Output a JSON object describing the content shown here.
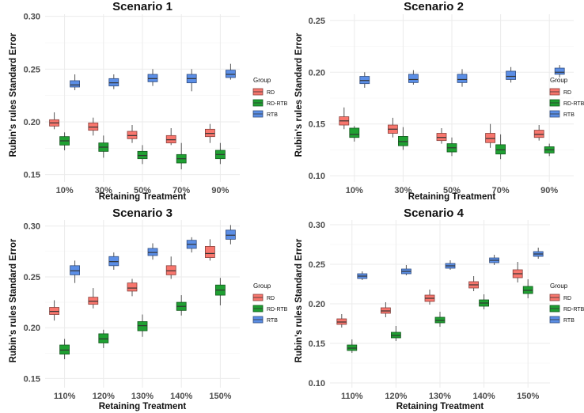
{
  "colors": {
    "RD": "#F8766D",
    "RD-RTB": "#1FA032",
    "RTB": "#5B8EE6"
  },
  "legend": {
    "title": "Group",
    "labels": [
      "RD",
      "RD-RTB",
      "RTB"
    ]
  },
  "chart_data": [
    {
      "type": "boxplot",
      "title": "Scenario 1",
      "xlabel": "Retaining Treatment",
      "ylabel": "Rubin's rules Standard Error",
      "categories": [
        "10%",
        "30%",
        "50%",
        "70%",
        "90%"
      ],
      "ylim": [
        0.143,
        0.302
      ],
      "yticks": [
        0.15,
        0.2,
        0.25,
        0.3
      ],
      "ytick_labels": [
        "0.15",
        "0.20",
        "0.25",
        "0.30"
      ],
      "series": [
        {
          "name": "RD",
          "boxes": [
            {
              "wlo": 0.193,
              "q1": 0.196,
              "med": 0.199,
              "q3": 0.202,
              "whi": 0.209
            },
            {
              "wlo": 0.187,
              "q1": 0.192,
              "med": 0.195,
              "q3": 0.199,
              "whi": 0.204
            },
            {
              "wlo": 0.18,
              "q1": 0.184,
              "med": 0.187,
              "q3": 0.191,
              "whi": 0.197
            },
            {
              "wlo": 0.178,
              "q1": 0.18,
              "med": 0.183,
              "q3": 0.187,
              "whi": 0.194
            },
            {
              "wlo": 0.18,
              "q1": 0.186,
              "med": 0.189,
              "q3": 0.193,
              "whi": 0.198
            }
          ]
        },
        {
          "name": "RD-RTB",
          "boxes": [
            {
              "wlo": 0.173,
              "q1": 0.178,
              "med": 0.182,
              "q3": 0.186,
              "whi": 0.19
            },
            {
              "wlo": 0.166,
              "q1": 0.172,
              "med": 0.176,
              "q3": 0.18,
              "whi": 0.187
            },
            {
              "wlo": 0.16,
              "q1": 0.165,
              "med": 0.168,
              "q3": 0.172,
              "whi": 0.178
            },
            {
              "wlo": 0.155,
              "q1": 0.161,
              "med": 0.165,
              "q3": 0.169,
              "whi": 0.18
            },
            {
              "wlo": 0.16,
              "q1": 0.165,
              "med": 0.169,
              "q3": 0.173,
              "whi": 0.18
            }
          ]
        },
        {
          "name": "RTB",
          "boxes": [
            {
              "wlo": 0.23,
              "q1": 0.233,
              "med": 0.235,
              "q3": 0.239,
              "whi": 0.245
            },
            {
              "wlo": 0.231,
              "q1": 0.234,
              "med": 0.237,
              "q3": 0.241,
              "whi": 0.245
            },
            {
              "wlo": 0.234,
              "q1": 0.238,
              "med": 0.241,
              "q3": 0.245,
              "whi": 0.25
            },
            {
              "wlo": 0.229,
              "q1": 0.237,
              "med": 0.241,
              "q3": 0.245,
              "whi": 0.25
            },
            {
              "wlo": 0.24,
              "q1": 0.242,
              "med": 0.245,
              "q3": 0.249,
              "whi": 0.255
            }
          ]
        }
      ]
    },
    {
      "type": "boxplot",
      "title": "Scenario 2",
      "xlabel": "Retaining Treatment",
      "ylabel": "Rubin's rules Standard Error",
      "categories": [
        "10%",
        "30%",
        "50%",
        "70%",
        "90%"
      ],
      "ylim": [
        0.094,
        0.256
      ],
      "yticks": [
        0.1,
        0.15,
        0.2,
        0.25
      ],
      "ytick_labels": [
        "0.10",
        "0.15",
        "0.20",
        "0.25"
      ],
      "series": [
        {
          "name": "RD",
          "boxes": [
            {
              "wlo": 0.145,
              "q1": 0.149,
              "med": 0.153,
              "q3": 0.157,
              "whi": 0.166
            },
            {
              "wlo": 0.137,
              "q1": 0.141,
              "med": 0.145,
              "q3": 0.149,
              "whi": 0.156
            },
            {
              "wlo": 0.131,
              "q1": 0.134,
              "med": 0.137,
              "q3": 0.141,
              "whi": 0.146
            },
            {
              "wlo": 0.127,
              "q1": 0.132,
              "med": 0.136,
              "q3": 0.141,
              "whi": 0.15
            },
            {
              "wlo": 0.134,
              "q1": 0.137,
              "med": 0.14,
              "q3": 0.144,
              "whi": 0.149
            }
          ]
        },
        {
          "name": "RD-RTB",
          "boxes": [
            {
              "wlo": 0.133,
              "q1": 0.137,
              "med": 0.14,
              "q3": 0.146,
              "whi": 0.148
            },
            {
              "wlo": 0.125,
              "q1": 0.129,
              "med": 0.133,
              "q3": 0.138,
              "whi": 0.147
            },
            {
              "wlo": 0.119,
              "q1": 0.123,
              "med": 0.127,
              "q3": 0.131,
              "whi": 0.137
            },
            {
              "wlo": 0.116,
              "q1": 0.121,
              "med": 0.125,
              "q3": 0.13,
              "whi": 0.14
            },
            {
              "wlo": 0.119,
              "q1": 0.122,
              "med": 0.125,
              "q3": 0.128,
              "whi": 0.131
            }
          ]
        },
        {
          "name": "RTB",
          "boxes": [
            {
              "wlo": 0.185,
              "q1": 0.189,
              "med": 0.192,
              "q3": 0.196,
              "whi": 0.2
            },
            {
              "wlo": 0.188,
              "q1": 0.19,
              "med": 0.193,
              "q3": 0.198,
              "whi": 0.202
            },
            {
              "wlo": 0.186,
              "q1": 0.19,
              "med": 0.193,
              "q3": 0.198,
              "whi": 0.203
            },
            {
              "wlo": 0.19,
              "q1": 0.193,
              "med": 0.196,
              "q3": 0.201,
              "whi": 0.205
            },
            {
              "wlo": 0.195,
              "q1": 0.198,
              "med": 0.2,
              "q3": 0.204,
              "whi": 0.207
            }
          ]
        }
      ]
    },
    {
      "type": "boxplot",
      "title": "Scenario 3",
      "xlabel": "Retaining Treatment",
      "ylabel": "Rubin's rules Standard Error",
      "categories": [
        "110%",
        "120%",
        "130%",
        "140%",
        "150%"
      ],
      "ylim": [
        0.141,
        0.306
      ],
      "yticks": [
        0.15,
        0.2,
        0.25,
        0.3
      ],
      "ytick_labels": [
        "0.15",
        "0.20",
        "0.25",
        "0.30"
      ],
      "series": [
        {
          "name": "RD",
          "boxes": [
            {
              "wlo": 0.207,
              "q1": 0.213,
              "med": 0.216,
              "q3": 0.22,
              "whi": 0.227
            },
            {
              "wlo": 0.219,
              "q1": 0.223,
              "med": 0.226,
              "q3": 0.23,
              "whi": 0.239
            },
            {
              "wlo": 0.231,
              "q1": 0.236,
              "med": 0.239,
              "q3": 0.244,
              "whi": 0.248
            },
            {
              "wlo": 0.248,
              "q1": 0.252,
              "med": 0.256,
              "q3": 0.261,
              "whi": 0.27
            },
            {
              "wlo": 0.266,
              "q1": 0.269,
              "med": 0.273,
              "q3": 0.28,
              "whi": 0.287
            }
          ]
        },
        {
          "name": "RD-RTB",
          "boxes": [
            {
              "wlo": 0.169,
              "q1": 0.174,
              "med": 0.178,
              "q3": 0.183,
              "whi": 0.189
            },
            {
              "wlo": 0.18,
              "q1": 0.185,
              "med": 0.189,
              "q3": 0.194,
              "whi": 0.198
            },
            {
              "wlo": 0.191,
              "q1": 0.197,
              "med": 0.202,
              "q3": 0.206,
              "whi": 0.213
            },
            {
              "wlo": 0.212,
              "q1": 0.217,
              "med": 0.221,
              "q3": 0.225,
              "whi": 0.232
            },
            {
              "wlo": 0.222,
              "q1": 0.232,
              "med": 0.237,
              "q3": 0.242,
              "whi": 0.249
            }
          ]
        },
        {
          "name": "RTB",
          "boxes": [
            {
              "wlo": 0.244,
              "q1": 0.252,
              "med": 0.256,
              "q3": 0.261,
              "whi": 0.266
            },
            {
              "wlo": 0.257,
              "q1": 0.261,
              "med": 0.265,
              "q3": 0.27,
              "whi": 0.274
            },
            {
              "wlo": 0.267,
              "q1": 0.271,
              "med": 0.274,
              "q3": 0.278,
              "whi": 0.283
            },
            {
              "wlo": 0.274,
              "q1": 0.278,
              "med": 0.282,
              "q3": 0.286,
              "whi": 0.289
            },
            {
              "wlo": 0.282,
              "q1": 0.287,
              "med": 0.291,
              "q3": 0.296,
              "whi": 0.301
            }
          ]
        }
      ]
    },
    {
      "type": "boxplot",
      "title": "Scenario 4",
      "xlabel": "Retaining Treatment",
      "ylabel": "Rubin's rules Standard Error",
      "categories": [
        "110%",
        "120%",
        "130%",
        "140%",
        "150%"
      ],
      "ylim": [
        0.094,
        0.306
      ],
      "yticks": [
        0.1,
        0.15,
        0.2,
        0.25,
        0.3
      ],
      "ytick_labels": [
        "0.10",
        "0.15",
        "0.20",
        "0.25",
        "0.30"
      ],
      "series": [
        {
          "name": "RD",
          "boxes": [
            {
              "wlo": 0.17,
              "q1": 0.174,
              "med": 0.177,
              "q3": 0.181,
              "whi": 0.187
            },
            {
              "wlo": 0.183,
              "q1": 0.188,
              "med": 0.191,
              "q3": 0.195,
              "whi": 0.202
            },
            {
              "wlo": 0.199,
              "q1": 0.203,
              "med": 0.207,
              "q3": 0.211,
              "whi": 0.218
            },
            {
              "wlo": 0.216,
              "q1": 0.22,
              "med": 0.224,
              "q3": 0.228,
              "whi": 0.235
            },
            {
              "wlo": 0.227,
              "q1": 0.233,
              "med": 0.238,
              "q3": 0.243,
              "whi": 0.253
            }
          ]
        },
        {
          "name": "RD-RTB",
          "boxes": [
            {
              "wlo": 0.138,
              "q1": 0.141,
              "med": 0.144,
              "q3": 0.148,
              "whi": 0.155
            },
            {
              "wlo": 0.153,
              "q1": 0.157,
              "med": 0.16,
              "q3": 0.164,
              "whi": 0.172
            },
            {
              "wlo": 0.171,
              "q1": 0.176,
              "med": 0.179,
              "q3": 0.183,
              "whi": 0.19
            },
            {
              "wlo": 0.193,
              "q1": 0.197,
              "med": 0.201,
              "q3": 0.205,
              "whi": 0.212
            },
            {
              "wlo": 0.207,
              "q1": 0.213,
              "med": 0.217,
              "q3": 0.222,
              "whi": 0.231
            }
          ]
        },
        {
          "name": "RTB",
          "boxes": [
            {
              "wlo": 0.23,
              "q1": 0.232,
              "med": 0.235,
              "q3": 0.238,
              "whi": 0.241
            },
            {
              "wlo": 0.236,
              "q1": 0.238,
              "med": 0.241,
              "q3": 0.244,
              "whi": 0.249
            },
            {
              "wlo": 0.243,
              "q1": 0.245,
              "med": 0.248,
              "q3": 0.251,
              "whi": 0.255
            },
            {
              "wlo": 0.249,
              "q1": 0.252,
              "med": 0.255,
              "q3": 0.258,
              "whi": 0.262
            },
            {
              "wlo": 0.257,
              "q1": 0.26,
              "med": 0.263,
              "q3": 0.266,
              "whi": 0.271
            }
          ]
        }
      ]
    }
  ]
}
